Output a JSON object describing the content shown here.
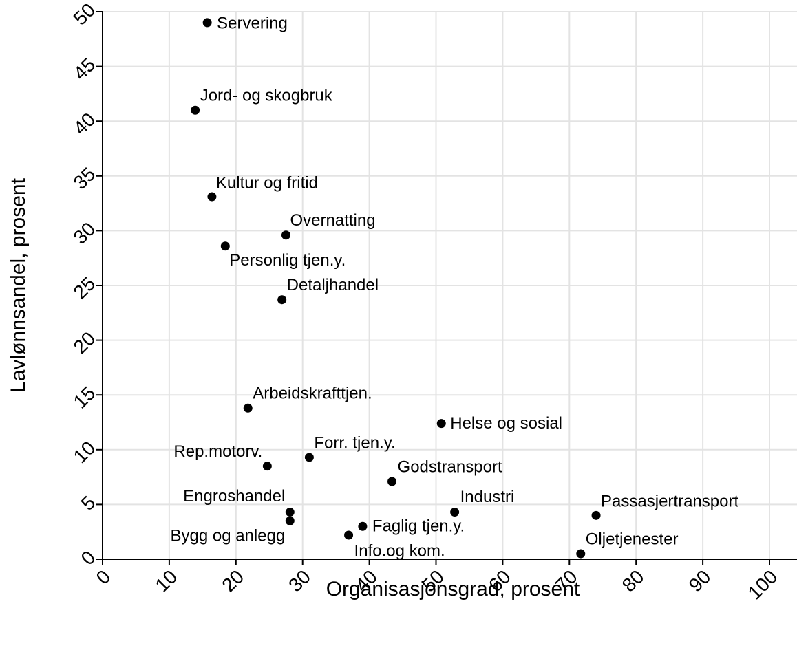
{
  "chart_data": {
    "type": "scatter",
    "x_label": "Organisasjonsgrad, prosent",
    "y_label": "Lavlønnsandel, prosent",
    "xlim": [
      0,
      100
    ],
    "ylim": [
      0,
      50
    ],
    "xticks": [
      0,
      10,
      20,
      30,
      40,
      50,
      60,
      70,
      80,
      90,
      100
    ],
    "yticks": [
      0,
      5,
      10,
      15,
      20,
      25,
      30,
      35,
      40,
      45,
      50
    ],
    "grid": true,
    "color": "#000000",
    "labels": [
      "Servering",
      "Jord- og skogbruk",
      "Kultur og fritid",
      "Overnatting",
      "Personlig tjen.y.",
      "Detaljhandel",
      "Arbeidskrafttjen.",
      "Helse og sosial",
      "Forr. tjen.y.",
      "Rep.motorv.",
      "Godstransport",
      "Engroshandel",
      "Industri",
      "Passasjertransport",
      "Bygg og anlegg",
      "Faglig tjen.y.",
      "Info.og kom.",
      "Oljetjenester"
    ],
    "x": [
      15.7,
      13.9,
      16.4,
      27.5,
      18.4,
      26.9,
      21.8,
      50.8,
      31.0,
      24.7,
      43.4,
      28.1,
      52.8,
      74.0,
      28.1,
      39.0,
      36.9,
      71.7
    ],
    "y": [
      49.0,
      41.0,
      33.1,
      29.6,
      28.6,
      23.7,
      13.8,
      12.4,
      9.3,
      8.5,
      7.1,
      4.3,
      4.3,
      4.0,
      3.5,
      3.0,
      2.2,
      0.5
    ]
  }
}
